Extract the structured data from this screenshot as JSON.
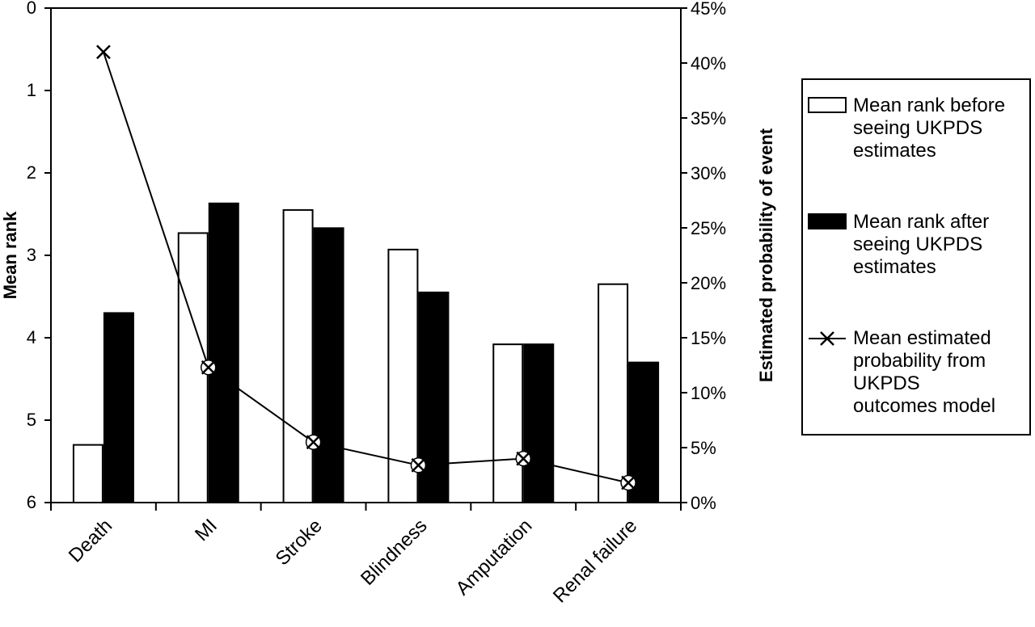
{
  "chart_data": {
    "type": "bar",
    "categories": [
      "Death",
      "MI",
      "Stroke",
      "Blindness",
      "Amputation",
      "Renal failure"
    ],
    "series": [
      {
        "name": "Mean rank before seeing UKPDS estimates",
        "legend_lines": [
          "Mean rank before",
          "seeing UKPDS",
          "estimates"
        ],
        "kind": "bar",
        "axis": "left",
        "fill": "#ffffff",
        "values": [
          5.3,
          2.73,
          2.45,
          2.93,
          4.08,
          3.35
        ]
      },
      {
        "name": "Mean rank after seeing UKPDS estimates",
        "legend_lines": [
          "Mean rank after",
          "seeing UKPDS",
          "estimates"
        ],
        "kind": "bar",
        "axis": "left",
        "fill": "#000000",
        "values": [
          3.7,
          2.37,
          2.67,
          3.45,
          4.08,
          4.3
        ]
      },
      {
        "name": "Mean estimated probability from UKPDS outcomes model",
        "legend_lines": [
          "Mean estimated",
          "probability from",
          "UKPDS",
          "outcomes model"
        ],
        "kind": "line",
        "axis": "right",
        "marker": "x",
        "values": [
          41.0,
          12.3,
          5.5,
          3.4,
          4.0,
          1.8
        ]
      }
    ],
    "ylabel": "Mean rank",
    "y2label": "Estimated probability of event",
    "ylim": [
      0,
      6
    ],
    "y_inverted": true,
    "yticks": [
      "0",
      "1",
      "2",
      "3",
      "4",
      "5",
      "6"
    ],
    "y2lim": [
      0,
      45
    ],
    "y2ticks": [
      "0%",
      "5%",
      "10%",
      "15%",
      "20%",
      "25%",
      "30%",
      "35%",
      "40%",
      "45%"
    ],
    "grid": false,
    "legend_position": "right"
  }
}
